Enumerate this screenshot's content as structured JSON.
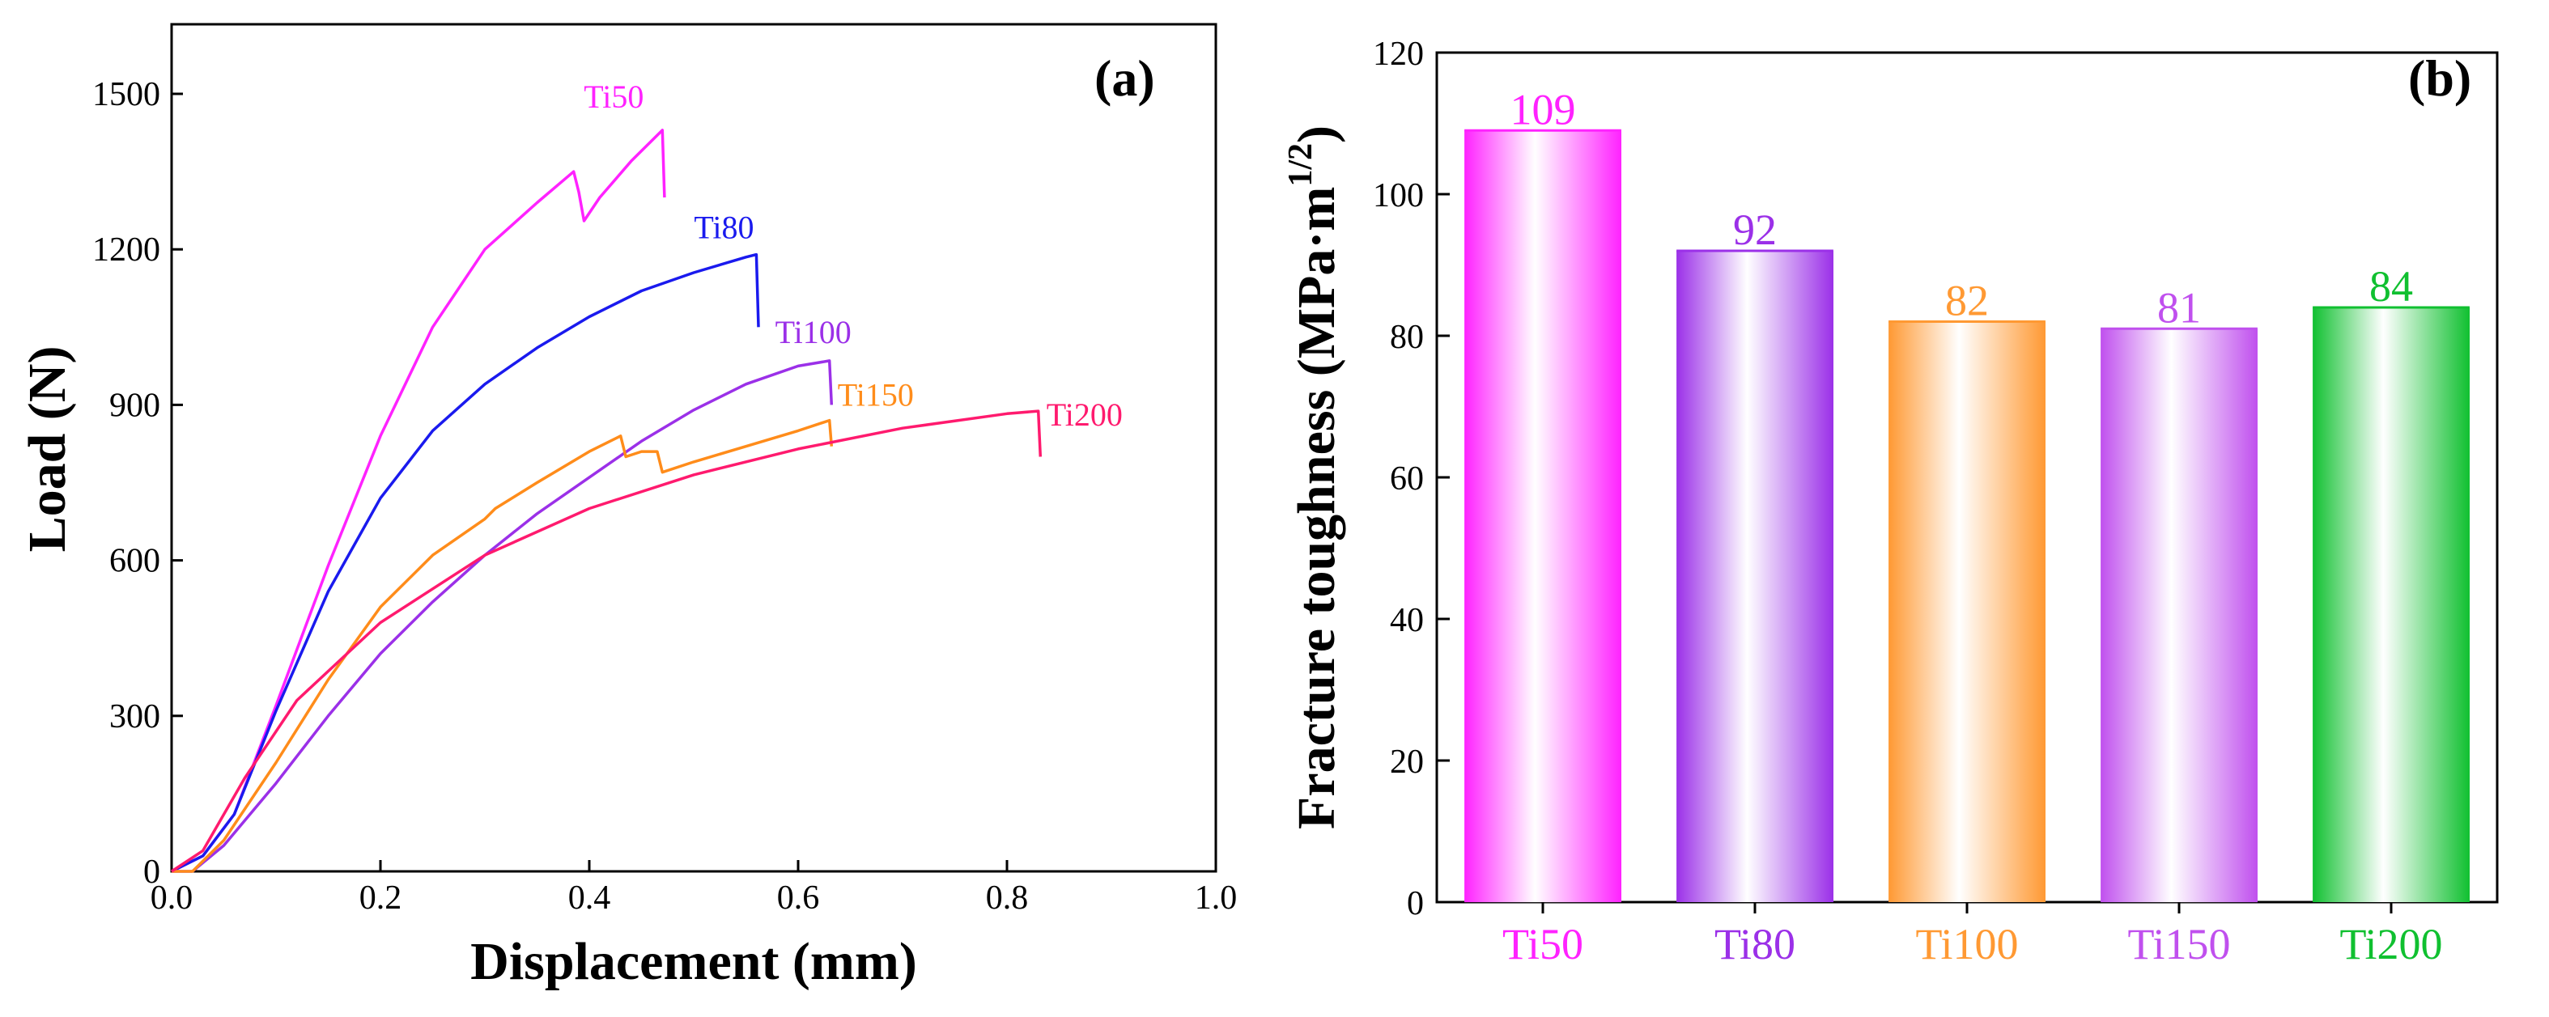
{
  "chart_data": [
    {
      "type": "line",
      "panel_label": "(a)",
      "xlabel": "Displacement (mm)",
      "ylabel": "Load (N)",
      "xlim": [
        0.0,
        1.0
      ],
      "ylim": [
        0,
        1500
      ],
      "xticks": [
        "0.0",
        "0.2",
        "0.4",
        "0.6",
        "0.8",
        "1.0"
      ],
      "yticks": [
        "0",
        "300",
        "600",
        "900",
        "1200",
        "1500"
      ],
      "grid": false,
      "series": [
        {
          "name": "Ti50",
          "color": "#ff22ff",
          "points": [
            [
              0,
              0
            ],
            [
              0.03,
              30
            ],
            [
              0.06,
              110
            ],
            [
              0.1,
              320
            ],
            [
              0.15,
              590
            ],
            [
              0.2,
              840
            ],
            [
              0.25,
              1050
            ],
            [
              0.27,
              1110
            ],
            [
              0.3,
              1200
            ],
            [
              0.35,
              1290
            ],
            [
              0.385,
              1350
            ],
            [
              0.39,
              1310
            ],
            [
              0.395,
              1255
            ],
            [
              0.41,
              1300
            ],
            [
              0.44,
              1370
            ],
            [
              0.47,
              1430
            ],
            [
              0.472,
              1300
            ]
          ]
        },
        {
          "name": "Ti80",
          "color": "#1a1aee",
          "points": [
            [
              0,
              0
            ],
            [
              0.03,
              30
            ],
            [
              0.06,
              110
            ],
            [
              0.1,
              310
            ],
            [
              0.15,
              540
            ],
            [
              0.2,
              720
            ],
            [
              0.25,
              850
            ],
            [
              0.3,
              940
            ],
            [
              0.35,
              1010
            ],
            [
              0.4,
              1070
            ],
            [
              0.45,
              1120
            ],
            [
              0.5,
              1155
            ],
            [
              0.55,
              1185
            ],
            [
              0.56,
              1190
            ],
            [
              0.562,
              1050
            ]
          ]
        },
        {
          "name": "Ti100",
          "color": "#9b30e8",
          "points": [
            [
              0,
              0
            ],
            [
              0.02,
              0
            ],
            [
              0.05,
              50
            ],
            [
              0.1,
              170
            ],
            [
              0.15,
              300
            ],
            [
              0.2,
              420
            ],
            [
              0.25,
              520
            ],
            [
              0.3,
              610
            ],
            [
              0.35,
              690
            ],
            [
              0.4,
              760
            ],
            [
              0.45,
              830
            ],
            [
              0.5,
              890
            ],
            [
              0.55,
              940
            ],
            [
              0.6,
              975
            ],
            [
              0.63,
              985
            ],
            [
              0.632,
              900
            ]
          ]
        },
        {
          "name": "Ti150",
          "color": "#ff8c1a",
          "points": [
            [
              0,
              0
            ],
            [
              0.02,
              0
            ],
            [
              0.05,
              60
            ],
            [
              0.1,
              210
            ],
            [
              0.15,
              370
            ],
            [
              0.2,
              510
            ],
            [
              0.25,
              610
            ],
            [
              0.3,
              680
            ],
            [
              0.31,
              700
            ],
            [
              0.35,
              750
            ],
            [
              0.4,
              810
            ],
            [
              0.43,
              840
            ],
            [
              0.435,
              800
            ],
            [
              0.45,
              810
            ],
            [
              0.465,
              810
            ],
            [
              0.47,
              770
            ],
            [
              0.5,
              790
            ],
            [
              0.55,
              820
            ],
            [
              0.6,
              850
            ],
            [
              0.63,
              870
            ],
            [
              0.632,
              820
            ]
          ]
        },
        {
          "name": "Ti200",
          "color": "#ff1a6e",
          "points": [
            [
              0,
              0
            ],
            [
              0.03,
              40
            ],
            [
              0.07,
              180
            ],
            [
              0.12,
              330
            ],
            [
              0.2,
              480
            ],
            [
              0.3,
              610
            ],
            [
              0.4,
              700
            ],
            [
              0.5,
              765
            ],
            [
              0.6,
              815
            ],
            [
              0.7,
              855
            ],
            [
              0.8,
              883
            ],
            [
              0.83,
              888
            ],
            [
              0.832,
              800
            ]
          ]
        }
      ]
    },
    {
      "type": "bar",
      "panel_label": "(b)",
      "xlabel": "",
      "ylabel": "Fracture toughness (MPa·m",
      "ylabel_sup": "1/2",
      "ylabel_close": ")",
      "ylim": [
        0,
        120
      ],
      "yticks": [
        "0",
        "20",
        "40",
        "60",
        "80",
        "100",
        "120"
      ],
      "categories": [
        "Ti50",
        "Ti80",
        "Ti100",
        "Ti150",
        "Ti200"
      ],
      "values": [
        109,
        92,
        82,
        81,
        84
      ],
      "value_labels": [
        "109",
        "92",
        "82",
        "81",
        "84"
      ],
      "colors": [
        "#ff22ff",
        "#9b30e8",
        "#ff9933",
        "#c050ee",
        "#10c030"
      ]
    }
  ]
}
